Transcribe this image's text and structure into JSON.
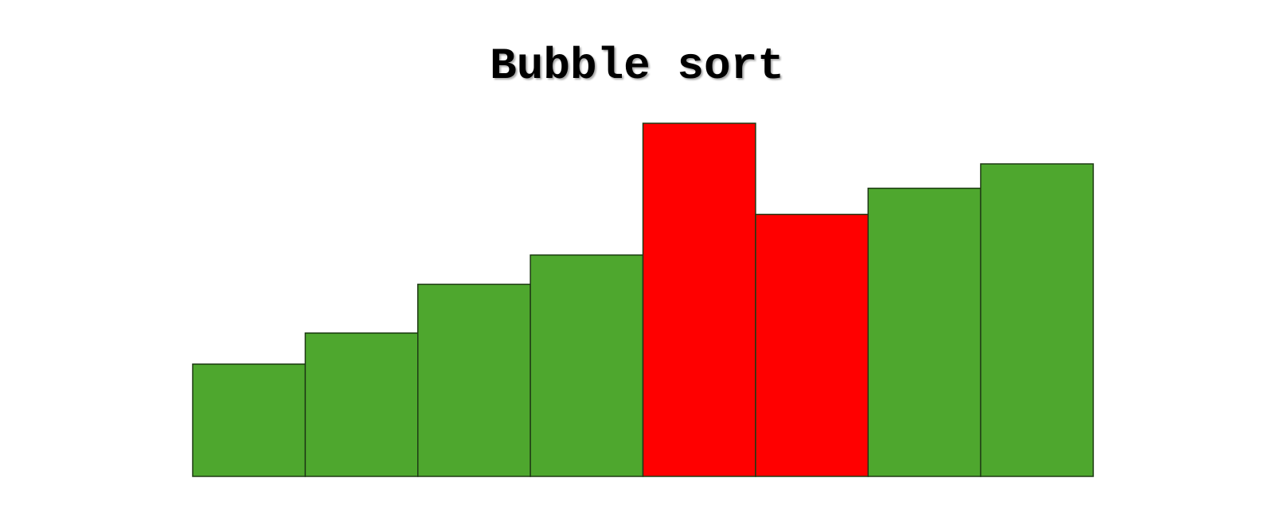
{
  "chart_data": {
    "type": "bar",
    "title": "Bubble sort",
    "xlabel": "",
    "ylabel": "",
    "ylim": [
      0,
      100
    ],
    "grid": false,
    "axes_visible": false,
    "values": [
      31.8,
      40.6,
      54.4,
      62.7,
      100,
      74.2,
      81.6,
      88.5
    ],
    "highlighted": [
      false,
      false,
      false,
      false,
      true,
      true,
      false,
      false
    ],
    "colors": {
      "normal": "#4ea72e",
      "highlight": "#ff0000",
      "stroke": "#1e3a14"
    }
  }
}
